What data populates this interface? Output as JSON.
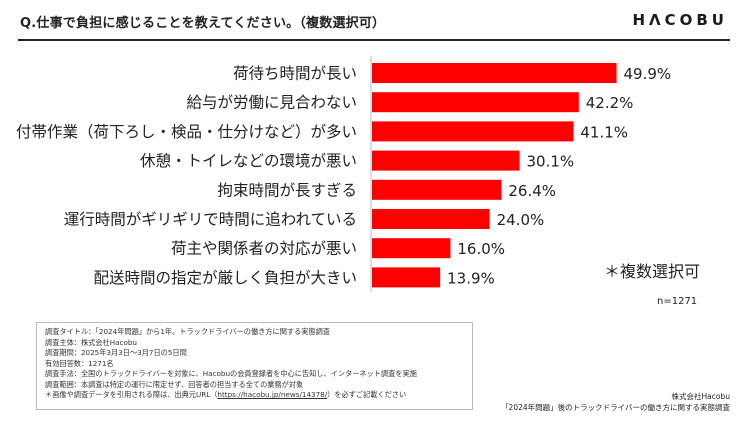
{
  "header": {
    "question": "Q.仕事で負担に感じることを教えてください。（複数選択可）",
    "logo_text": "HΛCOBU"
  },
  "chart_data": {
    "type": "bar",
    "orientation": "horizontal",
    "categories": [
      "荷待ち時間が長い",
      "給与が労働に見合わない",
      "付帯作業（荷下ろし・検品・仕分けなど）が多い",
      "休憩・トイレなどの環境が悪い",
      "拘束時間が長すぎる",
      "運行時間がギリギリで時間に追われている",
      "荷主や関係者の対応が悪い",
      "配送時間の指定が厳しく負担が大きい"
    ],
    "values": [
      49.9,
      42.2,
      41.1,
      30.1,
      26.4,
      24.0,
      16.0,
      13.9
    ],
    "value_labels": [
      "49.9%",
      "42.2%",
      "41.1%",
      "30.1%",
      "26.4%",
      "24.0%",
      "16.0%",
      "13.9%"
    ],
    "unit": "%",
    "bar_color": "#ff0000",
    "xlim": [
      0,
      100
    ],
    "grid": false,
    "legend": "none"
  },
  "notes": {
    "multi_select": "＊複数選択可",
    "n_count": "n=1271"
  },
  "info": {
    "lines": [
      "調査タイトル：「2024年問題」から1年。トラックドライバーの働き方に関する実態調査",
      "調査主体：株式会社Hacobu",
      "調査期間：2025年3月3日〜3月7日の5日間",
      "有効回答数：1271名",
      "調査手法：全国のトラックドライバーを対象に、Hacobuの会員登録者を中心に告知し、インターネット調査を実施",
      "調査範囲：本調査は特定の運行に限定せず、回答者の担当する全ての業務が対象"
    ],
    "last_prefix": "＊画像や調査データを引用される際は、出典元URL（",
    "last_url": "https://hacobu.jp/news/14378/",
    "last_suffix": "）を必ずご記載ください"
  },
  "footer": {
    "company": "株式会社Hacobu",
    "report": "「2024年問題」後のトラックドライバーの働き方に関する実態調査"
  }
}
